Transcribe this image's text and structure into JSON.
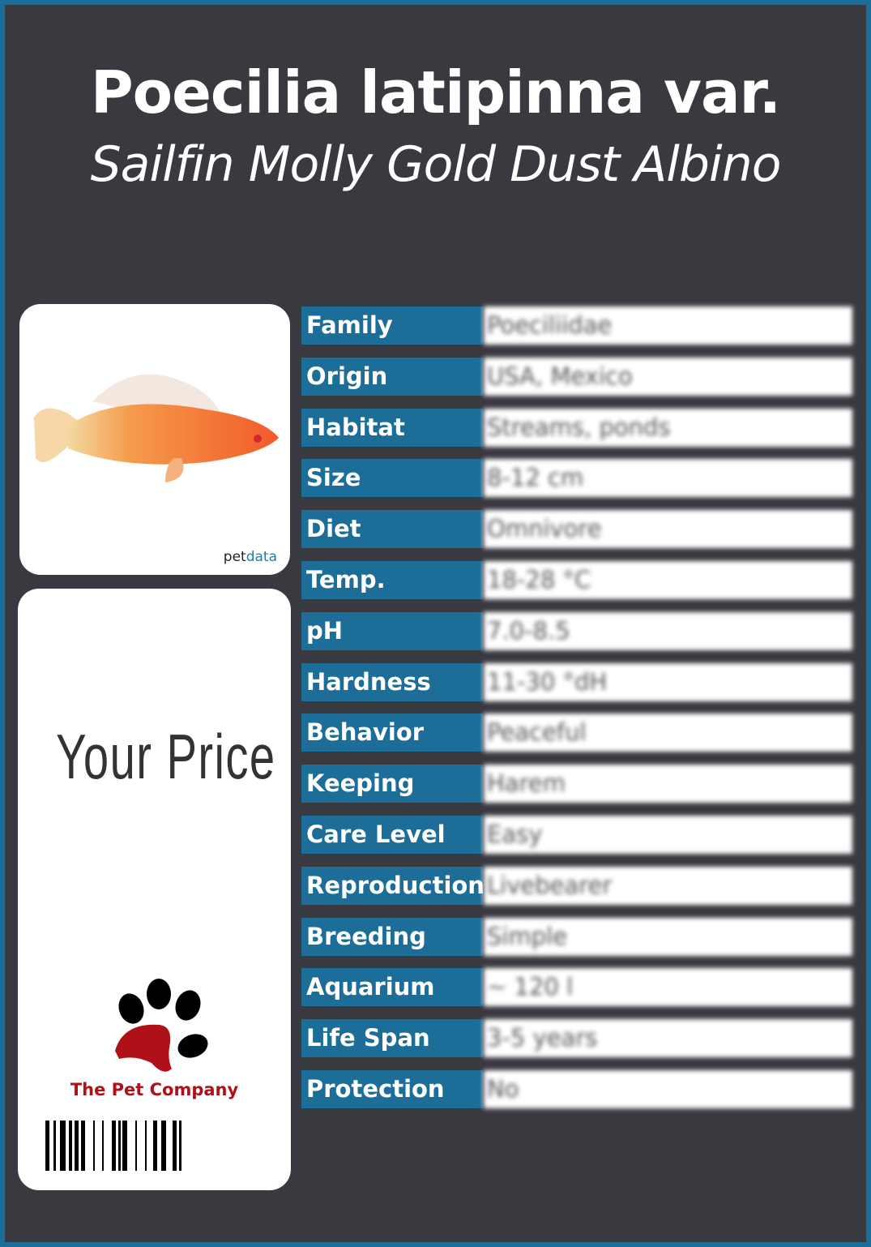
{
  "title": "Poecilia latipinna var.",
  "subtitle": "Sailfin Molly Gold Dust Albino",
  "image_card": {
    "brand_a": "pet",
    "brand_b": "data"
  },
  "price_card": {
    "price_label": "Your Price",
    "company": "The Pet Company"
  },
  "colors": {
    "background": "#393a40",
    "accent": "#1c6d98",
    "company": "#b01018"
  },
  "rows": [
    {
      "label": "Family",
      "value": "Poeciliidae"
    },
    {
      "label": "Origin",
      "value": "USA, Mexico"
    },
    {
      "label": "Habitat",
      "value": "Streams, ponds"
    },
    {
      "label": "Size",
      "value": "8-12 cm"
    },
    {
      "label": "Diet",
      "value": "Omnivore"
    },
    {
      "label": "Temp.",
      "value": "18-28 °C"
    },
    {
      "label": "pH",
      "value": "7.0-8.5"
    },
    {
      "label": "Hardness",
      "value": "11-30 °dH"
    },
    {
      "label": "Behavior",
      "value": "Peaceful"
    },
    {
      "label": "Keeping",
      "value": "Harem"
    },
    {
      "label": "Care Level",
      "value": "Easy"
    },
    {
      "label": "Reproduction",
      "value": "Livebearer"
    },
    {
      "label": "Breeding",
      "value": "Simple"
    },
    {
      "label": "Aquarium",
      "value": "~ 120 l"
    },
    {
      "label": "Life Span",
      "value": "3-5 years"
    },
    {
      "label": "Protection",
      "value": "No"
    }
  ]
}
